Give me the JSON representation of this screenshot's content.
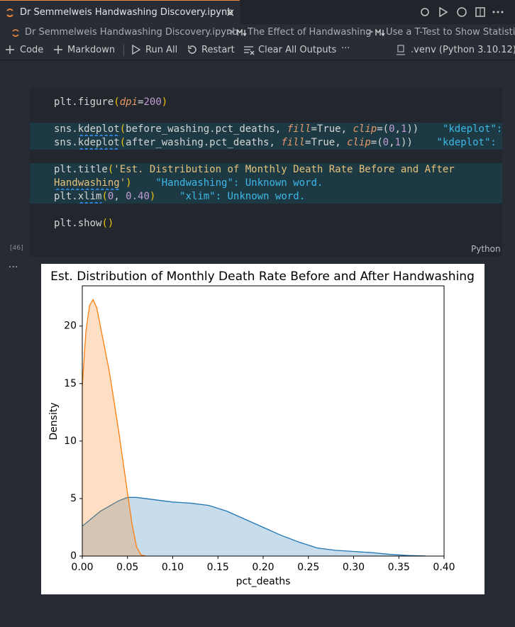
{
  "tab": {
    "title": "Dr Semmelweis Handwashing Discovery.ipynb",
    "close": "×"
  },
  "breadcrumb": {
    "items": [
      "Dr Semmelweis Handwashing Discovery.ipynb",
      "The Effect of Handwashing",
      "Use a T-Test to Show Statistica"
    ],
    "separator": ">"
  },
  "toolbar": {
    "code": "Code",
    "markdown": "Markdown",
    "run_all": "Run All",
    "restart": "Restart",
    "clear": "Clear All Outputs",
    "more": "···",
    "kernel": ".venv (Python 3.10.12)"
  },
  "cell": {
    "execution_count": "[46]",
    "language": "Python",
    "output_menu": "···",
    "lines": [
      {
        "tokens": [
          {
            "text": "plt.figure",
            "color": "#d4d4d4"
          },
          {
            "text": "(",
            "color": "#f1c40f"
          },
          {
            "text": "dpi",
            "color": "#e59866",
            "italic": true
          },
          {
            "text": "=",
            "color": "#d4d4d4"
          },
          {
            "text": "200",
            "color": "#c39bd3"
          },
          {
            "text": ")",
            "color": "#f1c40f"
          }
        ]
      },
      {
        "tokens": []
      },
      {
        "highlight": true,
        "tokens": [
          {
            "text": "sns.",
            "color": "#d4d4d4"
          },
          {
            "text": "kdeplot",
            "color": "#d4d4d4",
            "underline": true
          },
          {
            "text": "(",
            "color": "#f1c40f"
          },
          {
            "text": "before_washing.pct_deaths, ",
            "color": "#d4d4d4"
          },
          {
            "text": "fill",
            "color": "#e59866",
            "italic": true
          },
          {
            "text": "=True, ",
            "color": "#d4d4d4"
          },
          {
            "text": "clip",
            "color": "#e59866",
            "italic": true
          },
          {
            "text": "=(",
            "color": "#d4d4d4"
          },
          {
            "text": "0",
            "color": "#c39bd3"
          },
          {
            "text": ",",
            "color": "#d4d4d4"
          },
          {
            "text": "1",
            "color": "#c39bd3"
          },
          {
            "text": "))",
            "color": "#d4d4d4"
          },
          {
            "text": "    \"kdeplot\": Unknown word.",
            "color": "#3db8e8"
          }
        ]
      },
      {
        "highlight": true,
        "tokens": [
          {
            "text": "sns.",
            "color": "#d4d4d4"
          },
          {
            "text": "kdeplot",
            "color": "#d4d4d4",
            "underline": true
          },
          {
            "text": "(",
            "color": "#f1c40f"
          },
          {
            "text": "after_washing.pct_deaths, ",
            "color": "#d4d4d4"
          },
          {
            "text": "fill",
            "color": "#e59866",
            "italic": true
          },
          {
            "text": "=True, ",
            "color": "#d4d4d4"
          },
          {
            "text": "clip",
            "color": "#e59866",
            "italic": true
          },
          {
            "text": "=(",
            "color": "#d4d4d4"
          },
          {
            "text": "0",
            "color": "#c39bd3"
          },
          {
            "text": ",",
            "color": "#d4d4d4"
          },
          {
            "text": "1",
            "color": "#c39bd3"
          },
          {
            "text": "))",
            "color": "#d4d4d4"
          },
          {
            "text": "    \"kdeplot\": Unknown word.",
            "color": "#3db8e8"
          }
        ]
      },
      {
        "tokens": []
      },
      {
        "highlight": true,
        "tokens": [
          {
            "text": "plt.title",
            "color": "#d4d4d4"
          },
          {
            "text": "(",
            "color": "#f1c40f"
          },
          {
            "text": "'Est. Distribution of Monthly Death Rate Before and After",
            "color": "#e6c07b"
          }
        ]
      },
      {
        "highlight": true,
        "tokens": [
          {
            "text": "Handwashing",
            "color": "#e6c07b",
            "underline": true
          },
          {
            "text": "'",
            "color": "#e6c07b"
          },
          {
            "text": ")",
            "color": "#f1c40f"
          },
          {
            "text": "    \"Handwashing\": Unknown word.",
            "color": "#3db8e8"
          }
        ]
      },
      {
        "highlight": true,
        "tokens": [
          {
            "text": "plt.",
            "color": "#d4d4d4"
          },
          {
            "text": "xlim",
            "color": "#d4d4d4",
            "underline": true
          },
          {
            "text": "(",
            "color": "#f1c40f"
          },
          {
            "text": "0",
            "color": "#c39bd3"
          },
          {
            "text": ", ",
            "color": "#d4d4d4"
          },
          {
            "text": "0.40",
            "color": "#c39bd3"
          },
          {
            "text": ")",
            "color": "#f1c40f"
          },
          {
            "text": "    \"xlim\": Unknown word.",
            "color": "#3db8e8"
          }
        ]
      },
      {
        "tokens": []
      },
      {
        "tokens": [
          {
            "text": "plt.show",
            "color": "#d4d4d4"
          },
          {
            "text": "()",
            "color": "#f1c40f"
          }
        ]
      }
    ]
  },
  "chart_data": {
    "type": "kde",
    "title": "Est. Distribution of Monthly Death Rate Before and After Handwashing",
    "xlabel": "pct_deaths",
    "ylabel": "Density",
    "xlim": [
      0,
      0.4
    ],
    "ylim": [
      0,
      23.5
    ],
    "xticks": [
      {
        "value": 0,
        "label": "0.00"
      },
      {
        "value": 0.05,
        "label": "0.05"
      },
      {
        "value": 0.1,
        "label": "0.10"
      },
      {
        "value": 0.15,
        "label": "0.15"
      },
      {
        "value": 0.2,
        "label": "0.20"
      },
      {
        "value": 0.25,
        "label": "0.25"
      },
      {
        "value": 0.3,
        "label": "0.30"
      },
      {
        "value": 0.35,
        "label": "0.35"
      },
      {
        "value": 0.4,
        "label": "0.40"
      }
    ],
    "yticks": [
      0,
      5,
      10,
      15,
      20
    ],
    "fill": true,
    "series": [
      {
        "color": "#1f77b4",
        "x": [
          0,
          0.02,
          0.04,
          0.05,
          0.06,
          0.08,
          0.1,
          0.12,
          0.14,
          0.16,
          0.18,
          0.2,
          0.22,
          0.24,
          0.26,
          0.28,
          0.3,
          0.32,
          0.34,
          0.36,
          0.38
        ],
        "values": [
          2.6,
          3.9,
          4.8,
          5.1,
          5.1,
          4.9,
          4.7,
          4.6,
          4.4,
          3.9,
          3.2,
          2.5,
          1.8,
          1.2,
          0.7,
          0.5,
          0.4,
          0.3,
          0.15,
          0.05,
          0.01
        ]
      },
      {
        "color": "#ff7f0e",
        "x": [
          0,
          0.004,
          0.008,
          0.012,
          0.016,
          0.02,
          0.03,
          0.04,
          0.05,
          0.055,
          0.06,
          0.065,
          0.07
        ],
        "values": [
          14.8,
          19.5,
          21.8,
          22.3,
          21.6,
          20.0,
          16.0,
          11.0,
          5.5,
          2.8,
          0.8,
          0.1,
          0
        ]
      }
    ]
  }
}
